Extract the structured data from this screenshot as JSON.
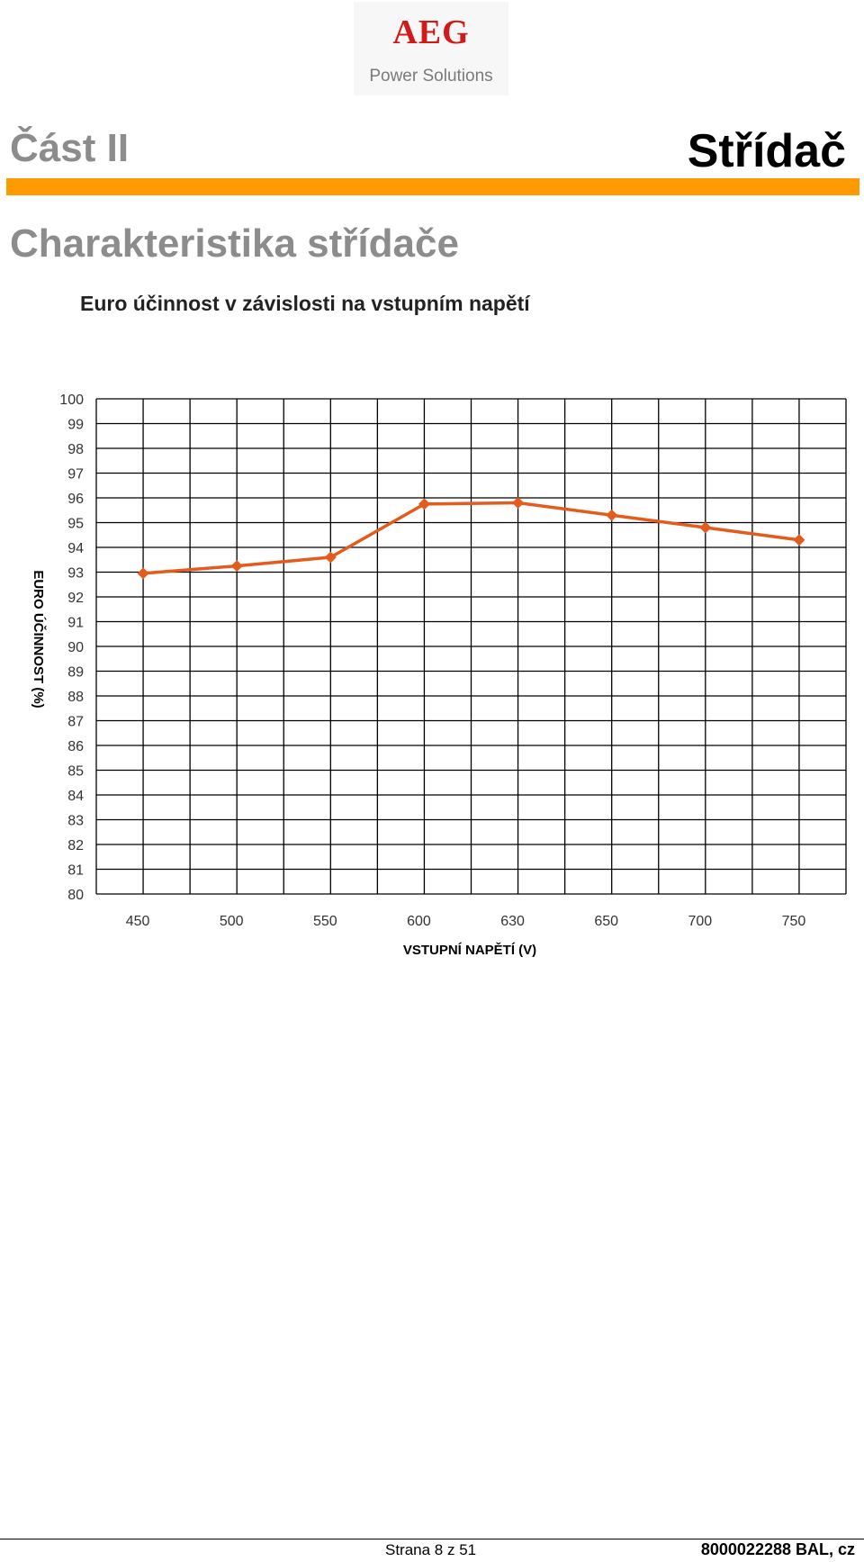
{
  "logo": {
    "brand": "AEG",
    "subtitle": "Power Solutions"
  },
  "header": {
    "part": "Část II",
    "chapter": "Střídač"
  },
  "section_title": "Charakteristika střídače",
  "chart_data": {
    "type": "line",
    "title": "Euro účinnost v závislosti na vstupním napětí",
    "xlabel": "VSTUPNÍ NAPĚTÍ (V)",
    "ylabel": "EURO ÚČINNOST (%)",
    "categories": [
      "450",
      "500",
      "550",
      "600",
      "630",
      "650",
      "700",
      "750"
    ],
    "values": [
      92.95,
      93.25,
      93.6,
      95.75,
      95.8,
      95.3,
      94.8,
      94.3
    ],
    "ylim": [
      80,
      100
    ],
    "yticks": [
      100,
      99,
      98,
      97,
      96,
      95,
      94,
      93,
      92,
      91,
      90,
      89,
      88,
      87,
      86,
      85,
      84,
      83,
      82,
      81,
      80
    ],
    "grid": true,
    "line_color": "#e35c1e"
  },
  "footer": {
    "page": "Strana 8 z 51",
    "doc": "8000022288 BAL, cz"
  }
}
